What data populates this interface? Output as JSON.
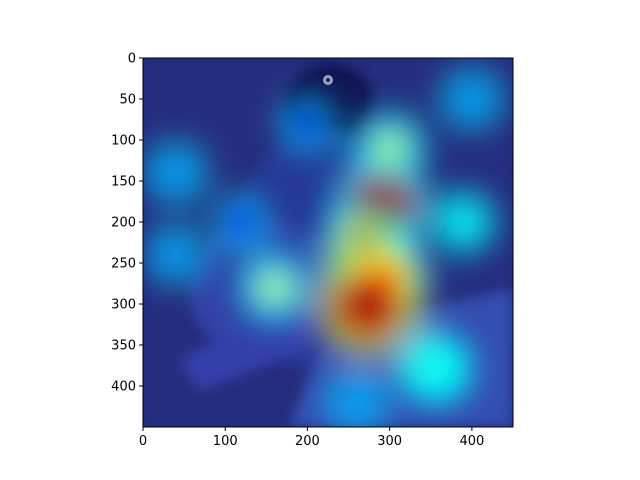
{
  "chart_data": {
    "type": "heatmap",
    "title": "",
    "xlabel": "",
    "ylabel": "",
    "xlim": [
      0,
      450
    ],
    "ylim": [
      450,
      0
    ],
    "grid": false,
    "x_ticks": [
      0,
      100,
      200,
      300,
      400
    ],
    "y_ticks": [
      0,
      50,
      100,
      150,
      200,
      250,
      300,
      350,
      400
    ],
    "colormap": [
      "#00007f",
      "#0000ff",
      "#00ffff",
      "#ffff00",
      "#ff0000",
      "#7f0000"
    ],
    "image_subject": "bird-photo",
    "heat_spots": [
      {
        "x": 300,
        "y": 110,
        "intensity": 0.55
      },
      {
        "x": 290,
        "y": 180,
        "intensity": 0.9
      },
      {
        "x": 270,
        "y": 230,
        "intensity": 0.8
      },
      {
        "x": 295,
        "y": 265,
        "intensity": 0.75
      },
      {
        "x": 275,
        "y": 300,
        "intensity": 1.0
      },
      {
        "x": 160,
        "y": 280,
        "intensity": 0.5
      },
      {
        "x": 40,
        "y": 140,
        "intensity": 0.35
      },
      {
        "x": 40,
        "y": 240,
        "intensity": 0.3
      },
      {
        "x": 400,
        "y": 50,
        "intensity": 0.35
      },
      {
        "x": 390,
        "y": 200,
        "intensity": 0.4
      },
      {
        "x": 350,
        "y": 375,
        "intensity": 0.5
      },
      {
        "x": 360,
        "y": 380,
        "intensity": 0.45
      },
      {
        "x": 260,
        "y": 420,
        "intensity": 0.35
      },
      {
        "x": 120,
        "y": 200,
        "intensity": 0.25
      },
      {
        "x": 200,
        "y": 80,
        "intensity": 0.25
      }
    ]
  }
}
